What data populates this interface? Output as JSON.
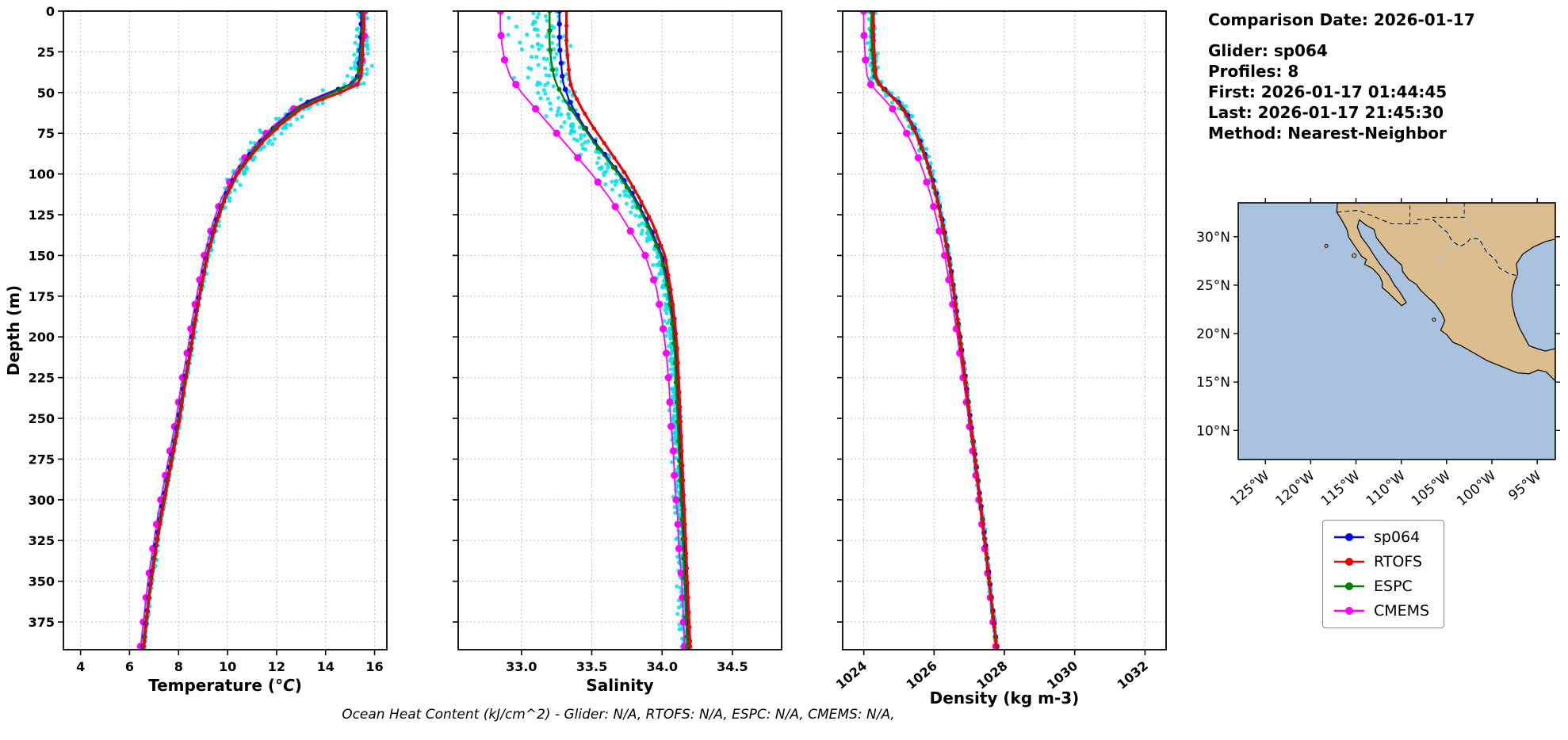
{
  "info_panel": {
    "comparison_date": "Comparison Date: 2026-01-17",
    "glider": "Glider: sp064",
    "profiles": "Profiles: 8",
    "first": "First: 2026-01-17 01:44:45",
    "last": "Last: 2026-01-17 21:45:30",
    "method": "Method: Nearest-Neighbor"
  },
  "footer": "Ocean Heat Content (kJ/cm^2) - Glider: N/A,  RTOFS: N/A,  ESPC: N/A,  CMEMS: N/A,",
  "legend": {
    "items": [
      {
        "label": "sp064",
        "color": "#0000ee"
      },
      {
        "label": "RTOFS",
        "color": "#ee0000"
      },
      {
        "label": "ESPC",
        "color": "#007f00"
      },
      {
        "label": "CMEMS",
        "color": "#ff00ff"
      }
    ]
  },
  "map": {
    "lat_tick_labels": [
      "30°N",
      "25°N",
      "20°N",
      "15°N",
      "10°N"
    ],
    "lat_tick_values": [
      30,
      25,
      20,
      15,
      10
    ],
    "lon_tick_labels": [
      "125°W",
      "120°W",
      "115°W",
      "110°W",
      "105°W",
      "100°W",
      "95°W"
    ],
    "lon_tick_values": [
      -125,
      -120,
      -115,
      -110,
      -105,
      -100,
      -95
    ],
    "extent": {
      "lon_min": -128,
      "lon_max": -93,
      "lat_min": 7,
      "lat_max": 33.5
    },
    "ocean_color": "#a9c2de",
    "land_color": "#dcbd8e",
    "river_color": "#aac9e8"
  },
  "chart_data": [
    {
      "type": "line",
      "name": "temperature-profile",
      "xlabel": "Temperature (°C)",
      "unit_italic": true,
      "ylabel": "Depth (m)",
      "xlim": [
        3.3,
        16.5
      ],
      "xticks": [
        4,
        6,
        8,
        10,
        12,
        14,
        16
      ],
      "xtick_labels": [
        "4",
        "6",
        "8",
        "10",
        "12",
        "14",
        "16"
      ],
      "ylim": [
        0,
        392
      ],
      "yticks": [
        0,
        25,
        50,
        75,
        100,
        125,
        150,
        175,
        200,
        225,
        250,
        275,
        300,
        325,
        350,
        375
      ],
      "depths": [
        0,
        10,
        20,
        30,
        40,
        45,
        50,
        55,
        60,
        70,
        80,
        90,
        100,
        115,
        130,
        150,
        170,
        190,
        210,
        230,
        250,
        270,
        290,
        310,
        330,
        350,
        370,
        390
      ],
      "series": [
        {
          "name": "sp064",
          "color": "#0000ee",
          "lw": 2.2,
          "ms": 3.2,
          "marker_every": 8,
          "values": [
            15.45,
            15.45,
            15.42,
            15.38,
            15.3,
            15.0,
            14.2,
            13.4,
            12.8,
            12.0,
            11.35,
            10.8,
            10.35,
            9.85,
            9.5,
            9.15,
            8.9,
            8.65,
            8.45,
            8.2,
            8.0,
            7.75,
            7.5,
            7.25,
            7.05,
            6.85,
            6.7,
            6.55
          ]
        },
        {
          "name": "RTOFS",
          "color": "#ee0000",
          "lw": 3.2,
          "ms": 2.6,
          "marker_every": 9,
          "values": [
            15.55,
            15.55,
            15.52,
            15.5,
            15.45,
            15.3,
            14.6,
            13.7,
            13.0,
            12.15,
            11.45,
            10.9,
            10.4,
            9.9,
            9.55,
            9.18,
            8.92,
            8.68,
            8.48,
            8.25,
            8.05,
            7.8,
            7.55,
            7.3,
            7.08,
            6.88,
            6.72,
            6.58
          ]
        },
        {
          "name": "ESPC",
          "color": "#007f00",
          "lw": 2.4,
          "ms": 3.0,
          "marker_every": 12,
          "values": [
            15.5,
            15.5,
            15.48,
            15.42,
            15.32,
            15.05,
            14.3,
            13.5,
            12.85,
            12.05,
            11.38,
            10.83,
            10.37,
            9.87,
            9.52,
            9.16,
            8.91,
            8.66,
            8.46,
            8.22,
            8.02,
            7.77,
            7.52,
            7.27,
            7.06,
            6.86,
            6.71,
            6.56
          ]
        },
        {
          "name": "CMEMS",
          "color": "#ff00ff",
          "lw": 1.8,
          "ms": 4.6,
          "marker_every": 15,
          "values": [
            15.6,
            15.6,
            15.55,
            15.48,
            15.35,
            15.1,
            14.1,
            13.3,
            12.7,
            11.9,
            11.25,
            10.7,
            10.25,
            9.75,
            9.4,
            9.05,
            8.8,
            8.55,
            8.35,
            8.1,
            7.9,
            7.65,
            7.4,
            7.15,
            6.95,
            6.75,
            6.6,
            6.45
          ]
        }
      ],
      "scatter": {
        "name": "glider-raw",
        "color": "#00e0ec",
        "base": 0.1,
        "bulge": 0.55,
        "bulge_depth": 60,
        "bulge_width": 45,
        "bias": 0.25
      }
    },
    {
      "type": "line",
      "name": "salinity-profile",
      "xlabel": "Salinity",
      "unit_italic": false,
      "ylabel": "",
      "xlim": [
        32.55,
        34.85
      ],
      "xticks": [
        33.0,
        33.5,
        34.0,
        34.5
      ],
      "xtick_labels": [
        "33.0",
        "33.5",
        "34.0",
        "34.5"
      ],
      "ylim": [
        0,
        392
      ],
      "yticks": [
        0,
        25,
        50,
        75,
        100,
        125,
        150,
        175,
        200,
        225,
        250,
        275,
        300,
        325,
        350,
        375
      ],
      "depths": [
        0,
        10,
        20,
        30,
        40,
        45,
        50,
        55,
        60,
        70,
        80,
        90,
        100,
        115,
        130,
        150,
        170,
        190,
        210,
        230,
        250,
        270,
        290,
        310,
        330,
        350,
        370,
        390
      ],
      "series": [
        {
          "name": "sp064",
          "color": "#0000ee",
          "lw": 2.2,
          "ms": 3.2,
          "marker_every": 8,
          "values": [
            33.27,
            33.27,
            33.27,
            33.28,
            33.29,
            33.3,
            33.32,
            33.34,
            33.37,
            33.44,
            33.52,
            33.61,
            33.7,
            33.81,
            33.9,
            34.0,
            34.05,
            34.08,
            34.1,
            34.11,
            34.12,
            34.13,
            34.14,
            34.15,
            34.16,
            34.17,
            34.18,
            34.19
          ]
        },
        {
          "name": "RTOFS",
          "color": "#ee0000",
          "lw": 3.2,
          "ms": 2.6,
          "marker_every": 9,
          "values": [
            33.32,
            33.32,
            33.32,
            33.33,
            33.34,
            33.35,
            33.37,
            33.4,
            33.43,
            33.5,
            33.58,
            33.66,
            33.74,
            33.84,
            33.93,
            34.02,
            34.06,
            34.09,
            34.11,
            34.12,
            34.13,
            34.14,
            34.15,
            34.16,
            34.17,
            34.18,
            34.19,
            34.2
          ]
        },
        {
          "name": "ESPC",
          "color": "#007f00",
          "lw": 2.4,
          "ms": 3.0,
          "marker_every": 12,
          "values": [
            33.2,
            33.2,
            33.2,
            33.21,
            33.23,
            33.25,
            33.28,
            33.31,
            33.35,
            33.43,
            33.51,
            33.6,
            33.69,
            33.8,
            33.89,
            33.99,
            34.04,
            34.07,
            34.09,
            34.1,
            34.11,
            34.12,
            34.13,
            34.14,
            34.15,
            34.16,
            34.17,
            34.18
          ]
        },
        {
          "name": "CMEMS",
          "color": "#ff00ff",
          "lw": 1.8,
          "ms": 4.6,
          "marker_every": 15,
          "values": [
            32.85,
            32.85,
            32.86,
            32.88,
            32.92,
            32.96,
            33.0,
            33.05,
            33.1,
            33.2,
            33.3,
            33.4,
            33.5,
            33.63,
            33.74,
            33.88,
            33.96,
            34.0,
            34.03,
            34.05,
            34.06,
            34.08,
            34.09,
            34.11,
            34.12,
            34.14,
            34.15,
            34.16
          ]
        }
      ],
      "scatter": {
        "name": "glider-raw",
        "color": "#00e0ec",
        "base": 0.05,
        "bulge": 0.22,
        "bulge_depth": 25,
        "bulge_width": 70,
        "bias": -0.45
      }
    },
    {
      "type": "line",
      "name": "density-profile",
      "xlabel": "Density (kg m-3)",
      "unit_italic": false,
      "ylabel": "",
      "xlim": [
        1023.4,
        1032.6
      ],
      "xticks": [
        1024,
        1026,
        1028,
        1030,
        1032
      ],
      "xtick_labels": [
        "1024",
        "1026",
        "1028",
        "1030",
        "1032"
      ],
      "ylim": [
        0,
        392
      ],
      "yticks": [
        0,
        25,
        50,
        75,
        100,
        125,
        150,
        175,
        200,
        225,
        250,
        275,
        300,
        325,
        350,
        375
      ],
      "depths": [
        0,
        10,
        20,
        30,
        40,
        45,
        50,
        55,
        60,
        70,
        80,
        90,
        100,
        115,
        130,
        150,
        170,
        190,
        210,
        230,
        250,
        270,
        290,
        310,
        330,
        350,
        370,
        390
      ],
      "series": [
        {
          "name": "sp064",
          "color": "#0000ee",
          "lw": 2.2,
          "ms": 3.2,
          "marker_every": 8,
          "values": [
            1024.25,
            1024.25,
            1024.26,
            1024.28,
            1024.32,
            1024.45,
            1024.7,
            1024.95,
            1025.15,
            1025.4,
            1025.6,
            1025.78,
            1025.92,
            1026.1,
            1026.25,
            1026.42,
            1026.56,
            1026.68,
            1026.8,
            1026.92,
            1027.03,
            1027.15,
            1027.26,
            1027.37,
            1027.48,
            1027.58,
            1027.68,
            1027.78
          ]
        },
        {
          "name": "RTOFS",
          "color": "#ee0000",
          "lw": 3.2,
          "ms": 2.6,
          "marker_every": 9,
          "values": [
            1024.28,
            1024.28,
            1024.29,
            1024.31,
            1024.35,
            1024.46,
            1024.68,
            1024.92,
            1025.12,
            1025.38,
            1025.58,
            1025.76,
            1025.9,
            1026.08,
            1026.23,
            1026.4,
            1026.55,
            1026.67,
            1026.79,
            1026.91,
            1027.02,
            1027.14,
            1027.25,
            1027.36,
            1027.47,
            1027.57,
            1027.67,
            1027.77
          ]
        },
        {
          "name": "ESPC",
          "color": "#007f00",
          "lw": 2.4,
          "ms": 3.0,
          "marker_every": 12,
          "values": [
            1024.22,
            1024.22,
            1024.23,
            1024.25,
            1024.3,
            1024.42,
            1024.66,
            1024.9,
            1025.1,
            1025.36,
            1025.57,
            1025.75,
            1025.9,
            1026.08,
            1026.24,
            1026.41,
            1026.55,
            1026.67,
            1026.79,
            1026.91,
            1027.02,
            1027.14,
            1027.25,
            1027.36,
            1027.47,
            1027.57,
            1027.67,
            1027.77
          ]
        },
        {
          "name": "CMEMS",
          "color": "#ff00ff",
          "lw": 1.8,
          "ms": 4.6,
          "marker_every": 15,
          "values": [
            1024.0,
            1024.0,
            1024.02,
            1024.05,
            1024.1,
            1024.2,
            1024.4,
            1024.62,
            1024.82,
            1025.1,
            1025.34,
            1025.55,
            1025.72,
            1025.93,
            1026.1,
            1026.3,
            1026.46,
            1026.6,
            1026.73,
            1026.86,
            1026.98,
            1027.1,
            1027.22,
            1027.33,
            1027.44,
            1027.55,
            1027.65,
            1027.76
          ]
        }
      ],
      "scatter": {
        "name": "glider-raw",
        "color": "#00e0ec",
        "base": 0.04,
        "bulge": 0.12,
        "bulge_depth": 40,
        "bulge_width": 60,
        "bias": -0.2
      }
    }
  ]
}
